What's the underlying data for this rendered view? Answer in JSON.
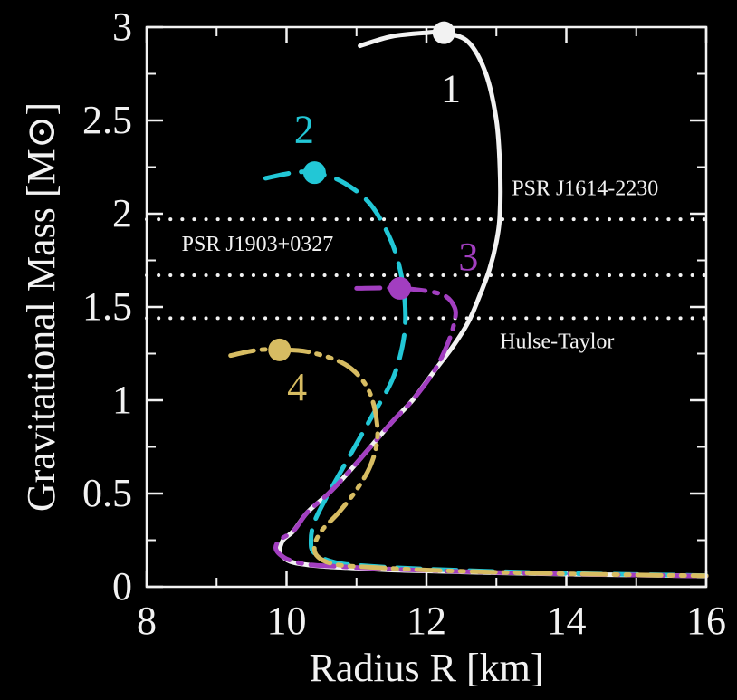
{
  "chart_data": {
    "type": "line",
    "xlabel": "Radius R [km]",
    "ylabel": "Gravitational Mass [M⊙]",
    "xlim": [
      8,
      16
    ],
    "ylim": [
      0,
      3
    ],
    "xticks": [
      8,
      10,
      12,
      14,
      16
    ],
    "yticks": [
      0,
      0.5,
      1,
      1.5,
      2,
      2.5,
      3
    ],
    "xtick_labels": [
      "8",
      "10",
      "12",
      "14",
      "16"
    ],
    "ytick_labels": [
      "0",
      "0.5",
      "1",
      "1.5",
      "2",
      "2.5",
      "3"
    ],
    "background": "#000000",
    "axis_color": "#f2f2f2",
    "grid": false,
    "series": [
      {
        "label": "1",
        "color": "#f2f2f2",
        "style": "solid",
        "marker": [
          12.25,
          2.97
        ],
        "x": [
          11.05,
          11.5,
          12.0,
          12.25,
          12.6,
          12.85,
          13.0,
          13.05,
          13.05,
          13.0,
          12.9,
          12.75,
          12.6,
          12.4,
          12.1,
          11.8,
          11.5,
          11.2,
          10.9,
          10.6,
          10.3,
          10.1,
          9.95,
          9.9,
          9.95,
          10.1,
          10.5,
          11.0,
          11.5,
          12.0,
          13.0,
          14.0,
          15.0,
          16.0
        ],
        "y": [
          2.9,
          2.95,
          2.97,
          2.97,
          2.92,
          2.75,
          2.5,
          2.25,
          2.0,
          1.85,
          1.7,
          1.55,
          1.42,
          1.3,
          1.15,
          1.0,
          0.88,
          0.75,
          0.62,
          0.5,
          0.4,
          0.3,
          0.25,
          0.19,
          0.16,
          0.13,
          0.11,
          0.1,
          0.09,
          0.085,
          0.075,
          0.068,
          0.063,
          0.058
        ]
      },
      {
        "label": "2",
        "color": "#22c7d6",
        "style": "dashed",
        "marker": [
          10.4,
          2.22
        ],
        "x": [
          9.7,
          10.1,
          10.4,
          10.8,
          11.2,
          11.5,
          11.65,
          11.7,
          11.65,
          11.5,
          11.2,
          10.9,
          10.6,
          10.4,
          10.35,
          10.4,
          10.7,
          11.2,
          12.0,
          13.0,
          14.0,
          15.0,
          16.0
        ],
        "y": [
          2.19,
          2.22,
          2.22,
          2.17,
          2.05,
          1.85,
          1.65,
          1.45,
          1.28,
          1.1,
          0.9,
          0.7,
          0.5,
          0.35,
          0.25,
          0.18,
          0.13,
          0.11,
          0.095,
          0.082,
          0.072,
          0.066,
          0.06
        ]
      },
      {
        "label": "3",
        "color": "#a23ec0",
        "style": "dash-dot",
        "marker": [
          11.62,
          1.6
        ],
        "x": [
          11.0,
          11.62,
          12.2,
          12.4,
          12.4,
          12.3,
          12.1,
          11.8,
          11.5,
          11.2,
          10.9,
          10.6,
          10.3,
          10.1,
          9.9,
          9.85,
          10.0,
          10.3,
          10.7,
          11.2,
          12.0,
          13.0,
          14.0,
          15.0,
          16.0
        ],
        "y": [
          1.6,
          1.6,
          1.57,
          1.5,
          1.42,
          1.3,
          1.15,
          1.0,
          0.88,
          0.75,
          0.62,
          0.5,
          0.4,
          0.3,
          0.25,
          0.2,
          0.15,
          0.12,
          0.11,
          0.1,
          0.088,
          0.077,
          0.069,
          0.063,
          0.058
        ]
      },
      {
        "label": "4",
        "color": "#d7bc62",
        "style": "dash-dot-dot",
        "marker": [
          9.9,
          1.27
        ],
        "x": [
          9.2,
          9.6,
          9.9,
          10.3,
          10.8,
          11.1,
          11.25,
          11.3,
          11.2,
          11.0,
          10.75,
          10.5,
          10.4,
          10.45,
          10.7,
          11.2,
          12.0,
          13.0,
          14.0,
          15.0,
          16.0
        ],
        "y": [
          1.24,
          1.27,
          1.27,
          1.26,
          1.2,
          1.1,
          0.97,
          0.8,
          0.65,
          0.52,
          0.4,
          0.3,
          0.22,
          0.16,
          0.12,
          0.105,
          0.09,
          0.078,
          0.07,
          0.064,
          0.059
        ]
      }
    ],
    "reference_lines": [
      {
        "y": 1.97,
        "label": "PSR J1614-2230",
        "label_x": 13.22,
        "label_y": 2.1
      },
      {
        "y": 1.67,
        "label": "PSR J1903+0327",
        "label_x": 8.5,
        "label_y": 1.8
      },
      {
        "y": 1.44,
        "label": "Hulse-Taylor",
        "label_x": 13.05,
        "label_y": 1.28
      }
    ],
    "curve_labels": [
      {
        "text": "1",
        "x": 12.35,
        "y": 2.6
      },
      {
        "text": "2",
        "x": 10.25,
        "y": 2.38
      },
      {
        "text": "3",
        "x": 12.6,
        "y": 1.7
      },
      {
        "text": "4",
        "x": 10.15,
        "y": 1.0
      }
    ]
  }
}
